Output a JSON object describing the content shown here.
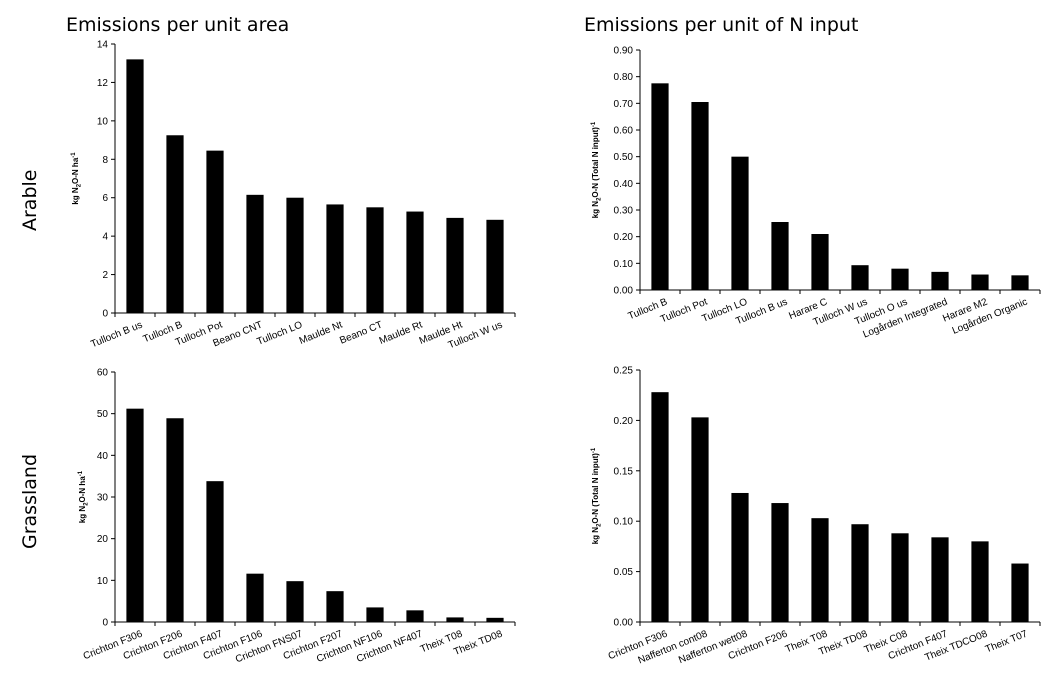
{
  "headings": {
    "left": "Emissions per unit area",
    "right": "Emissions per unit of N input"
  },
  "row_labels": {
    "arable": "Arable",
    "grassland": "Grassland"
  },
  "chart_data": [
    {
      "id": "arable-area",
      "type": "bar",
      "title": "",
      "ylabel": "kg N2O-N ha-1",
      "ylabel_parts": [
        "kg N",
        "2",
        "O-N ha",
        "-1"
      ],
      "ylim": [
        0,
        14
      ],
      "ystep": 2,
      "ydecimals": 0,
      "grid": false,
      "color": "#000000",
      "categories": [
        "Tulloch B us",
        "Tulloch B",
        "Tulloch Pot",
        "Beano CNT",
        "Tulloch LO",
        "Maulde Nt",
        "Beano CT",
        "Maulde Rt",
        "Maulde Ht",
        "Tulloch W us"
      ],
      "values": [
        13.2,
        9.25,
        8.45,
        6.15,
        6.0,
        5.65,
        5.5,
        5.28,
        4.95,
        4.85
      ]
    },
    {
      "id": "arable-input",
      "type": "bar",
      "title": "",
      "ylabel": "kg N2O-N (Total N input)-1",
      "ylabel_parts": [
        "kg N",
        "2",
        "O-N  (Total N input)",
        "-1"
      ],
      "ylim": [
        0,
        0.9
      ],
      "ystep": 0.1,
      "ydecimals": 2,
      "grid": false,
      "color": "#000000",
      "categories": [
        "Tulloch B",
        "Tulloch Pot",
        "Tulloch LO",
        "Tulloch B us",
        "Harare C",
        "Tulloch W us",
        "Tulloch O us",
        "Logården Integrated",
        "Harare M2",
        "Logården Organic"
      ],
      "values": [
        0.775,
        0.705,
        0.5,
        0.255,
        0.21,
        0.093,
        0.08,
        0.068,
        0.058,
        0.055
      ]
    },
    {
      "id": "grassland-area",
      "type": "bar",
      "title": "",
      "ylabel": "kg N2O-N ha-1",
      "ylabel_parts": [
        "kg N",
        "2",
        "O-N ha",
        "-1"
      ],
      "ylim": [
        0,
        60
      ],
      "ystep": 10,
      "ydecimals": 0,
      "grid": false,
      "color": "#000000",
      "categories": [
        "Crichton F306",
        "Crichton F206",
        "Crichton F407",
        "Crichton F106",
        "Crichton FNS07",
        "Crichton F207",
        "Crichton NF106",
        "Crichton NF407",
        "Theix T08",
        "Theix TD08"
      ],
      "values": [
        51.2,
        48.9,
        33.8,
        11.6,
        9.8,
        7.4,
        3.5,
        2.8,
        1.1,
        1.0
      ]
    },
    {
      "id": "grassland-input",
      "type": "bar",
      "title": "",
      "ylabel": "kg N2O-N (Total N input)-1",
      "ylabel_parts": [
        "kg N",
        "2",
        "O-N  (Total N input)",
        "-1"
      ],
      "ylim": [
        0,
        0.25
      ],
      "ystep": 0.05,
      "ydecimals": 2,
      "grid": false,
      "color": "#000000",
      "categories": [
        "Crichton F306",
        "Nafferton cont08",
        "Nafferton wett08",
        "Crichton F206",
        "Theix T08",
        "Theix TD08",
        "Theix C08",
        "Crichton F407",
        "Theix TDCO08",
        "Theix T07"
      ],
      "values": [
        0.228,
        0.203,
        0.128,
        0.118,
        0.103,
        0.097,
        0.088,
        0.084,
        0.08,
        0.058
      ]
    }
  ]
}
